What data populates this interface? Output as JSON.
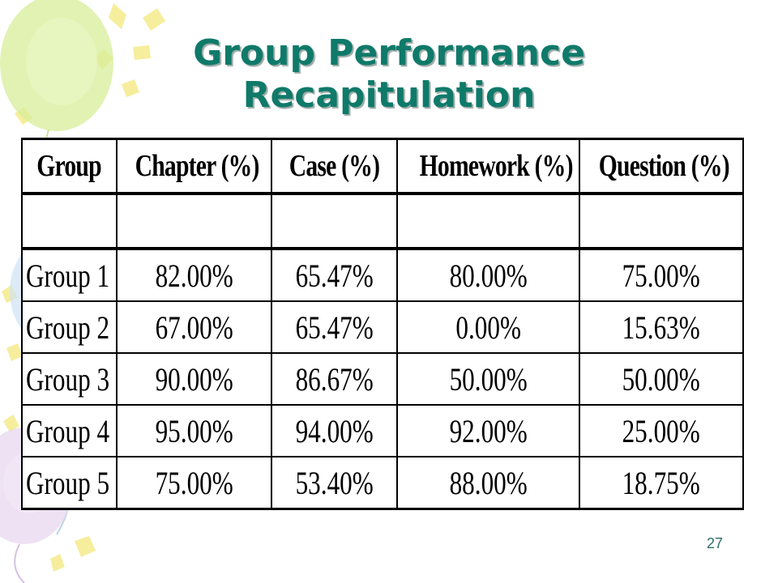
{
  "slide": {
    "title": "Group Performance Recapitulation",
    "page_number": "27"
  },
  "table": {
    "headers": [
      "Group",
      "Chapter (%)",
      "Case (%)",
      "Homework (%)",
      "Question (%)"
    ],
    "rows": [
      [
        "Group 1",
        "82.00%",
        "65.47%",
        "80.00%",
        "75.00%"
      ],
      [
        "Group 2",
        "67.00%",
        "65.47%",
        "0.00%",
        "15.63%"
      ],
      [
        "Group 3",
        "90.00%",
        "86.67%",
        "50.00%",
        "50.00%"
      ],
      [
        "Group 4",
        "95.00%",
        "94.00%",
        "92.00%",
        "25.00%"
      ],
      [
        "Group 5",
        "75.00%",
        "53.40%",
        "88.00%",
        "18.75%"
      ]
    ]
  },
  "colors": {
    "title": "#0f7a6a",
    "page_number": "#2f6f6a",
    "balloon_green": "#d7ee9a",
    "balloon_blue": "#cfe3f3",
    "balloon_purple": "#e8d7ef",
    "confetti_yellow": "#f6ee9c"
  }
}
